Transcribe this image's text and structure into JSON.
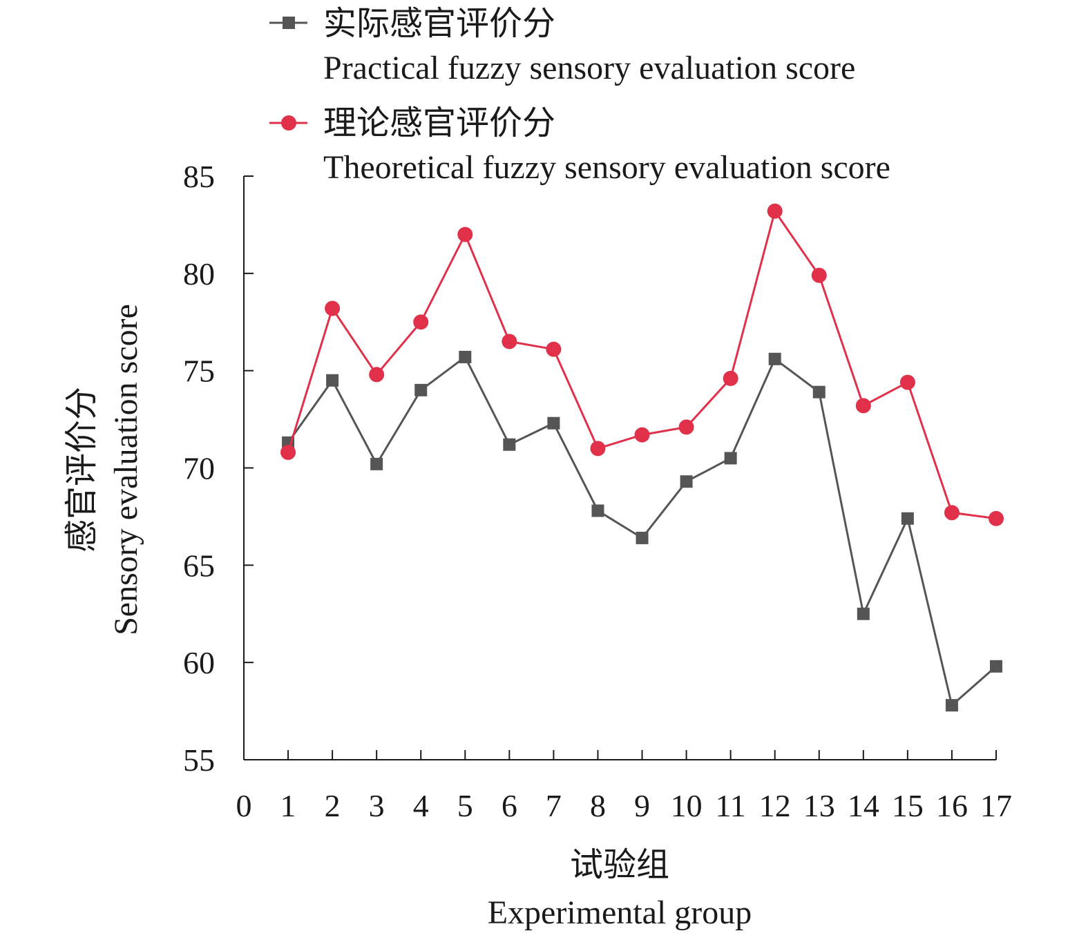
{
  "chart_data": {
    "type": "line",
    "x": [
      1,
      2,
      3,
      4,
      5,
      6,
      7,
      8,
      9,
      10,
      11,
      12,
      13,
      14,
      15,
      16,
      17
    ],
    "xlim": [
      0,
      17
    ],
    "ylim": [
      55,
      85
    ],
    "x_ticks": [
      "0",
      "1",
      "2",
      "3",
      "4",
      "5",
      "6",
      "7",
      "8",
      "9",
      "10",
      "11",
      "12",
      "13",
      "14",
      "15",
      "16",
      "17"
    ],
    "y_ticks": [
      "55",
      "60",
      "65",
      "70",
      "75",
      "80",
      "85"
    ],
    "xlabel_cn": "试验组",
    "xlabel_en": "Experimental group",
    "ylabel_cn": "感官评价分",
    "ylabel_en": "Sensory evaluation score",
    "legend_position": "top",
    "grid": false,
    "series": [
      {
        "name_cn": "实际感官评价分",
        "name_en": "Practical fuzzy sensory evaluation score",
        "marker": "square",
        "color": "#555555",
        "values": [
          71.3,
          74.5,
          70.2,
          74.0,
          75.7,
          71.2,
          72.3,
          67.8,
          66.4,
          69.3,
          70.5,
          75.6,
          73.9,
          62.5,
          67.4,
          57.8,
          59.8
        ]
      },
      {
        "name_cn": "理论感官评价分",
        "name_en": "Theoretical fuzzy sensory evaluation score",
        "marker": "circle",
        "color": "#e0304a",
        "values": [
          70.8,
          78.2,
          74.8,
          77.5,
          82.0,
          76.5,
          76.1,
          71.0,
          71.7,
          72.1,
          74.6,
          83.2,
          79.9,
          73.2,
          74.4,
          67.7,
          67.4
        ]
      }
    ]
  }
}
